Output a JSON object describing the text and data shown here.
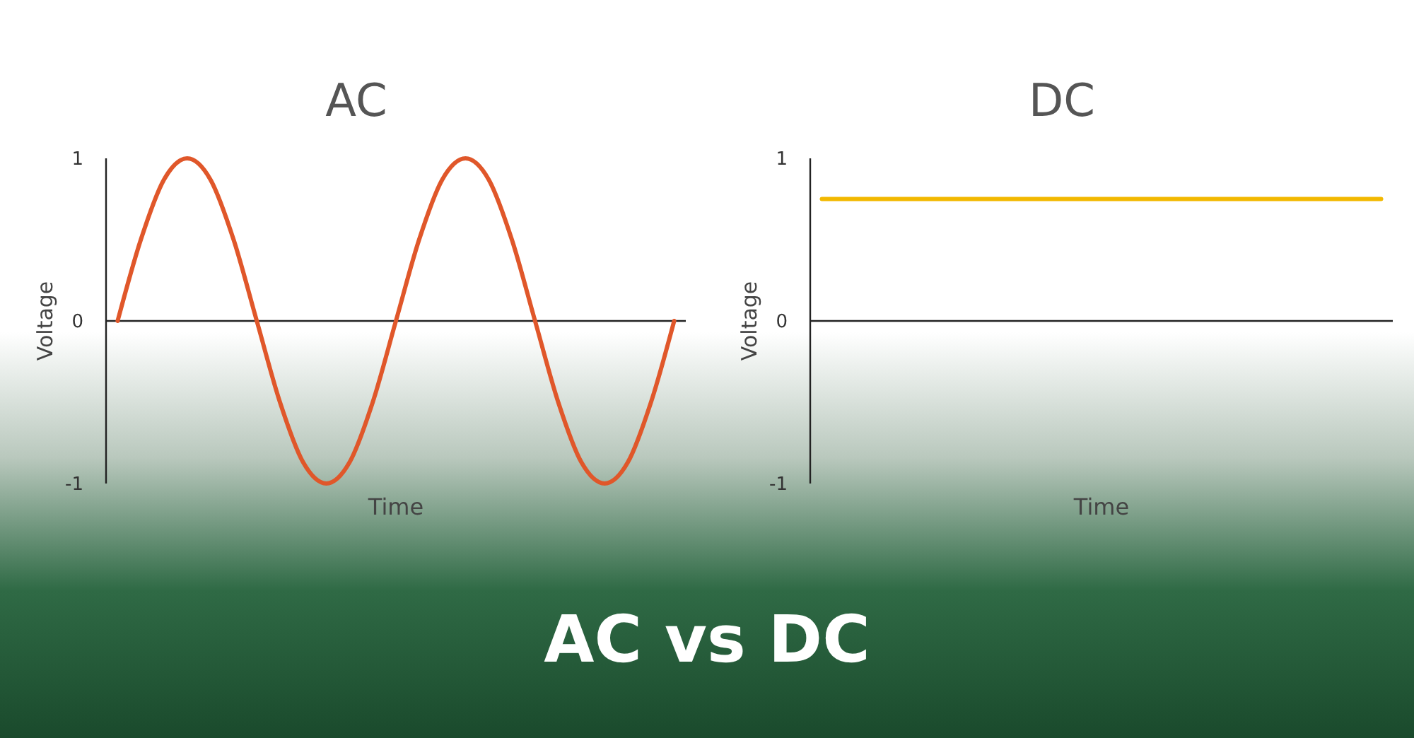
{
  "chart_data": [
    {
      "type": "line",
      "title": "AC",
      "xlabel": "Time",
      "ylabel": "Voltage",
      "categories": [
        null,
        null,
        null,
        null,
        null,
        null,
        null,
        null,
        null,
        null,
        null,
        null,
        null,
        null,
        null,
        null,
        null,
        null,
        null,
        null,
        null,
        null,
        null,
        null,
        null
      ],
      "series": [
        {
          "color": "#e0572a",
          "values": [
            0,
            0.5,
            0.87,
            1,
            0.87,
            0.5,
            0,
            -0.5,
            -0.87,
            -1,
            -0.87,
            -0.5,
            0,
            0.5,
            0.87,
            1,
            0.87,
            0.5,
            0,
            -0.5,
            -0.87,
            -1,
            -0.87,
            -0.5,
            0
          ]
        }
      ],
      "ylim": [
        -1,
        1
      ],
      "yticks": [
        -1,
        0,
        1
      ],
      "tick_labels": "y",
      "annotations": [
        "AC vs DC"
      ]
    },
    {
      "type": "line",
      "title": "DC",
      "xlabel": "Time",
      "ylabel": "Voltage",
      "categories": [
        null,
        null,
        null,
        null,
        null,
        null,
        null,
        null,
        null,
        null,
        null,
        null,
        null,
        null,
        null,
        null,
        null,
        null,
        null,
        null,
        null,
        null,
        null,
        null,
        null
      ],
      "series": [
        {
          "color": "#f2b800",
          "values": [
            0.75,
            0.75,
            0.75,
            0.75,
            0.75,
            0.75,
            0.75,
            0.75,
            0.75,
            0.75,
            0.75,
            0.75,
            0.75,
            0.75,
            0.75,
            0.75,
            0.75,
            0.75,
            0.75,
            0.75,
            0.75,
            0.75,
            0.75,
            0.75,
            0.75
          ]
        }
      ],
      "ylim": [
        -1,
        1
      ],
      "yticks": [
        -1,
        0,
        1
      ],
      "tick_labels": "y"
    }
  ]
}
